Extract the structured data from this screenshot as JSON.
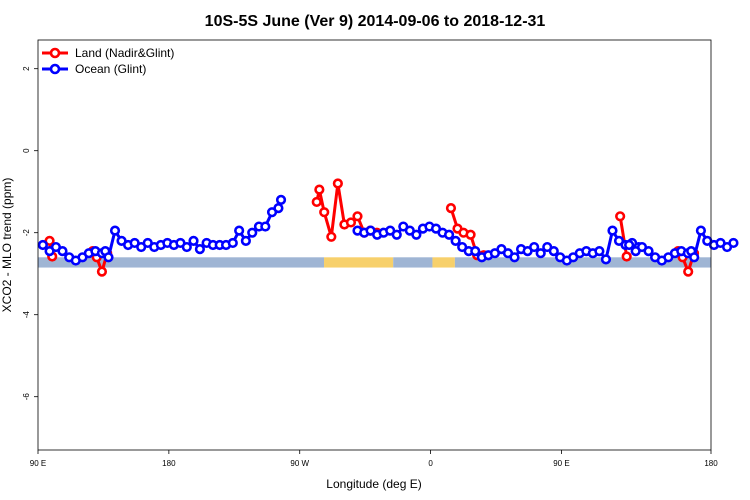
{
  "chart_data": {
    "type": "line",
    "title": "10S-5S June (Ver 9)   2014-09-06 to 2018-12-31",
    "xlabel": "Longitude (deg E)",
    "ylabel": "XCO2 - MLO trend (ppm)",
    "xlim": [
      90,
      450
    ],
    "ylim": [
      -7.3,
      2.7
    ],
    "x_ticks": [
      {
        "value": 90,
        "label": "90 E"
      },
      {
        "value": 160,
        "label": "180"
      },
      {
        "value": 230,
        "label": "90 W"
      },
      {
        "value": 300,
        "label": "0"
      },
      {
        "value": 370,
        "label": "90 E"
      },
      {
        "value": 450,
        "label": "180"
      }
    ],
    "y_ticks": [
      {
        "value": 2,
        "label": "2"
      },
      {
        "value": 0,
        "label": "0"
      },
      {
        "value": -2,
        "label": "-2"
      },
      {
        "value": -4,
        "label": "-4"
      },
      {
        "value": -6,
        "label": "-6"
      }
    ],
    "grid": false,
    "legend_position": "top-left",
    "surface_band": {
      "y_range": [
        -2.85,
        -2.6
      ],
      "segments": [
        {
          "x0": 90,
          "x1": 243,
          "type": "ocean"
        },
        {
          "x0": 243,
          "x1": 280,
          "type": "land"
        },
        {
          "x0": 280,
          "x1": 301,
          "type": "ocean"
        },
        {
          "x0": 301,
          "x1": 313,
          "type": "land"
        },
        {
          "x0": 313,
          "x1": 450,
          "type": "ocean"
        }
      ],
      "colors": {
        "ocean": "#9fb5d4",
        "land": "#f7d06b"
      }
    },
    "series": [
      {
        "name": "Land (Nadir&Glint)",
        "color": "#ff0000",
        "segments": [
          [
            [
              96.2,
              -2.2
            ],
            [
              97.6,
              -2.58
            ]
          ],
          [
            [
              119.3,
              -2.45
            ],
            [
              121.4,
              -2.6
            ],
            [
              124.2,
              -2.95
            ],
            [
              127.0,
              -2.5
            ]
          ],
          [
            [
              239.1,
              -1.25
            ],
            [
              240.5,
              -0.95
            ],
            [
              243.1,
              -1.5
            ],
            [
              246.9,
              -2.1
            ],
            [
              250.4,
              -0.8
            ],
            [
              253.9,
              -1.8
            ],
            [
              257.4,
              -1.75
            ],
            [
              260.9,
              -1.6
            ],
            [
              264.5,
              -2.0
            ],
            [
              267.8,
              -1.95
            ],
            [
              271.3,
              -2.0
            ]
          ],
          [
            [
              310.9,
              -1.4
            ],
            [
              314.4,
              -1.9
            ],
            [
              317.6,
              -2.0
            ],
            [
              321.4,
              -2.05
            ],
            [
              324.9,
              -2.55
            ],
            [
              328.4,
              -2.55
            ]
          ],
          [
            [
              401.4,
              -1.6
            ],
            [
              404.9,
              -2.58
            ]
          ],
          [
            [
              432.4,
              -2.45
            ],
            [
              434.8,
              -2.6
            ],
            [
              437.8,
              -2.95
            ],
            [
              440.9,
              -2.5
            ]
          ]
        ]
      },
      {
        "name": "Ocean (Glint)",
        "color": "#0000ff",
        "segments": [
          [
            [
              92.6,
              -2.3
            ],
            [
              96.2,
              -2.45
            ],
            [
              99.6,
              -2.35
            ],
            [
              103.1,
              -2.45
            ],
            [
              106.7,
              -2.6
            ],
            [
              110.2,
              -2.68
            ],
            [
              113.8,
              -2.6
            ],
            [
              117.2,
              -2.5
            ],
            [
              120.7,
              -2.45
            ],
            [
              124.2,
              -2.5
            ],
            [
              126.0,
              -2.45
            ],
            [
              127.7,
              -2.6
            ],
            [
              131.2,
              -1.95
            ],
            [
              134.7,
              -2.2
            ],
            [
              138.2,
              -2.3
            ],
            [
              141.7,
              -2.25
            ],
            [
              145.2,
              -2.35
            ],
            [
              148.7,
              -2.25
            ],
            [
              152.2,
              -2.35
            ],
            [
              155.7,
              -2.3
            ],
            [
              159.2,
              -2.25
            ],
            [
              162.7,
              -2.3
            ],
            [
              166.2,
              -2.25
            ],
            [
              169.6,
              -2.35
            ],
            [
              173.2,
              -2.2
            ],
            [
              176.6,
              -2.4
            ],
            [
              180.2,
              -2.25
            ],
            [
              183.6,
              -2.3
            ],
            [
              187.2,
              -2.3
            ],
            [
              190.6,
              -2.3
            ],
            [
              194.2,
              -2.25
            ],
            [
              197.6,
              -1.95
            ],
            [
              201.2,
              -2.2
            ],
            [
              204.6,
              -2.0
            ],
            [
              208.2,
              -1.85
            ],
            [
              211.6,
              -1.85
            ],
            [
              215.2,
              -1.5
            ],
            [
              218.6,
              -1.4
            ],
            [
              220.0,
              -1.2
            ]
          ],
          [
            [
              260.9,
              -1.95
            ],
            [
              264.5,
              -2.0
            ],
            [
              267.9,
              -1.95
            ],
            [
              271.4,
              -2.05
            ],
            [
              274.9,
              -2.0
            ],
            [
              278.4,
              -1.95
            ],
            [
              281.9,
              -2.05
            ],
            [
              285.4,
              -1.85
            ],
            [
              288.9,
              -1.95
            ],
            [
              292.4,
              -2.05
            ],
            [
              295.9,
              -1.9
            ],
            [
              299.4,
              -1.85
            ],
            [
              302.9,
              -1.9
            ],
            [
              306.4,
              -2.0
            ],
            [
              309.9,
              -2.05
            ],
            [
              313.4,
              -2.2
            ],
            [
              316.9,
              -2.35
            ],
            [
              320.4,
              -2.45
            ],
            [
              323.9,
              -2.45
            ],
            [
              327.4,
              -2.6
            ],
            [
              330.9,
              -2.55
            ],
            [
              334.4,
              -2.5
            ],
            [
              337.9,
              -2.4
            ],
            [
              341.4,
              -2.5
            ],
            [
              344.9,
              -2.6
            ],
            [
              348.4,
              -2.4
            ],
            [
              351.9,
              -2.45
            ],
            [
              355.4,
              -2.35
            ],
            [
              358.9,
              -2.5
            ],
            [
              362.4,
              -2.35
            ],
            [
              365.9,
              -2.45
            ],
            [
              369.3,
              -2.6
            ],
            [
              372.9,
              -2.68
            ],
            [
              376.3,
              -2.6
            ],
            [
              379.8,
              -2.5
            ],
            [
              383.3,
              -2.45
            ],
            [
              386.8,
              -2.5
            ],
            [
              390.3,
              -2.45
            ],
            [
              393.8,
              -2.65
            ],
            [
              397.3,
              -1.95
            ],
            [
              400.8,
              -2.2
            ],
            [
              404.3,
              -2.3
            ],
            [
              407.8,
              -2.25
            ],
            [
              411.3,
              -2.35
            ]
          ],
          [
            [
              406.2,
              -2.3
            ],
            [
              409.7,
              -2.45
            ],
            [
              413.1,
              -2.35
            ],
            [
              416.6,
              -2.45
            ],
            [
              420.1,
              -2.6
            ],
            [
              423.7,
              -2.68
            ],
            [
              427.2,
              -2.6
            ],
            [
              430.7,
              -2.5
            ],
            [
              434.1,
              -2.45
            ],
            [
              437.6,
              -2.5
            ],
            [
              439.4,
              -2.45
            ],
            [
              441.0,
              -2.6
            ],
            [
              444.6,
              -1.95
            ],
            [
              448.0,
              -2.2
            ],
            [
              451.6,
              -2.3
            ],
            [
              455.1,
              -2.25
            ],
            [
              458.6,
              -2.35
            ],
            [
              462.0,
              -2.25
            ]
          ]
        ]
      }
    ]
  }
}
